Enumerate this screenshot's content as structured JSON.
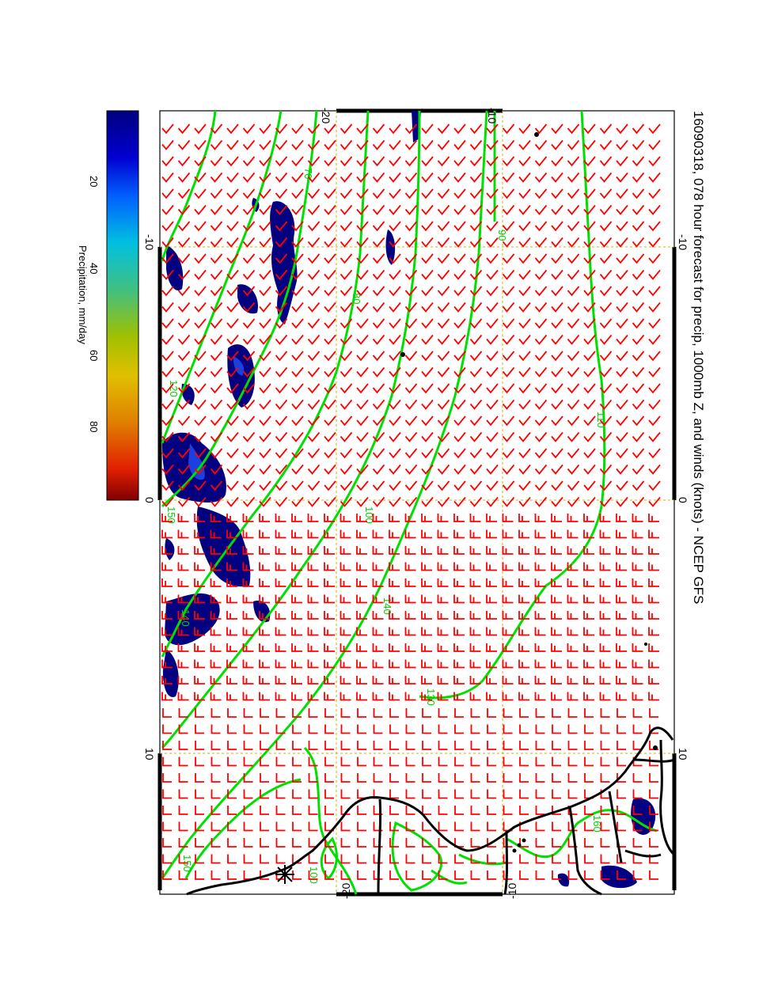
{
  "title": "16090318, 078 hour forecast for precip, 1000mb Z, and winds (knots) - NCEP GFS",
  "colorbar": {
    "label": "Precipitation, mm/day",
    "ticks": [
      "20",
      "40",
      "60",
      "80"
    ],
    "colors": [
      "#000080",
      "#0000d0",
      "#0060ff",
      "#00c0e0",
      "#40c080",
      "#a0c000",
      "#e0c000",
      "#e08000",
      "#e02000",
      "#800000"
    ]
  },
  "axes": {
    "longitude_ticks": [
      "-10",
      "0",
      "10"
    ],
    "latitude_ticks": [
      "-20",
      "-10"
    ]
  },
  "contours": {
    "color": "#00e000",
    "labels": [
      "70",
      "80",
      "90",
      "100",
      "110",
      "120",
      "130",
      "140",
      "150",
      "160"
    ]
  },
  "colors": {
    "wind_barb": "#ff0000",
    "coast": "#000000",
    "grid": "#d0b000",
    "precip_dark": "#000080"
  },
  "icons": {
    "barb": "wind-barb-icon",
    "station": "asterisk-station-icon"
  }
}
